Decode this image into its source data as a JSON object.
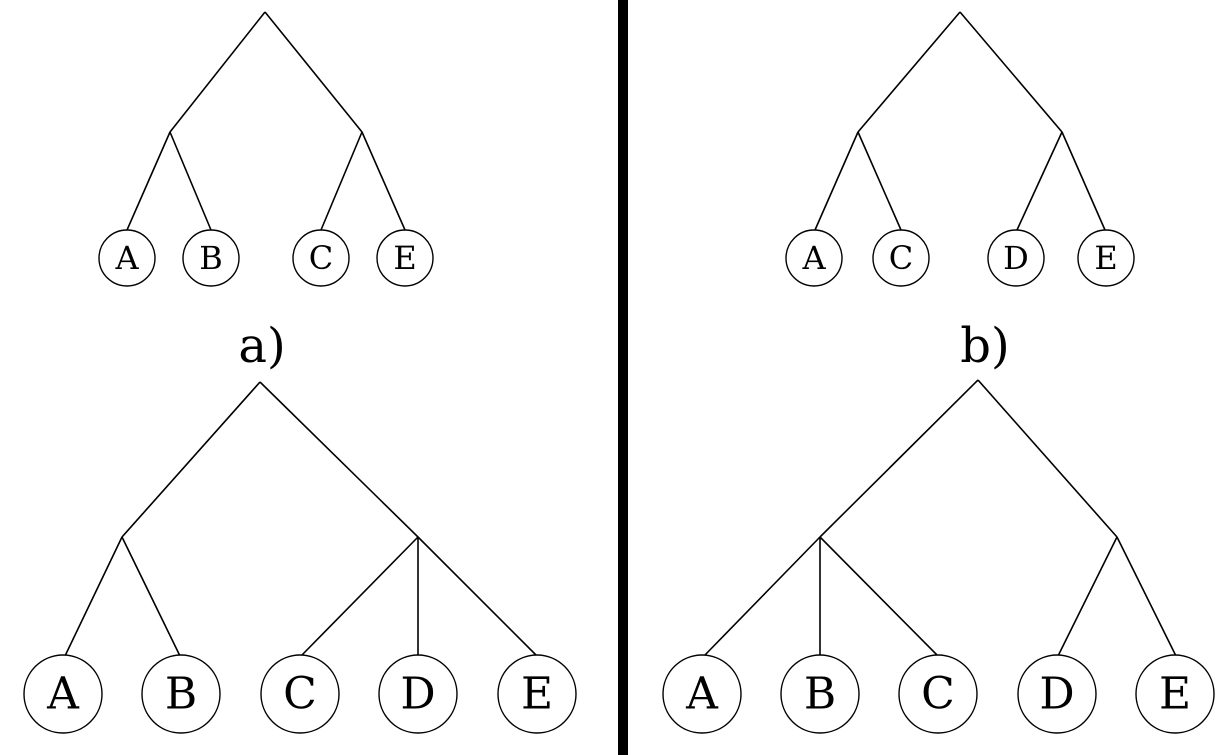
{
  "panels": [
    {
      "label": "a)",
      "top_tree": {
        "leaves": [
          "A",
          "B",
          "C",
          "E"
        ]
      },
      "bottom_tree": {
        "leaves": [
          "A",
          "B",
          "C",
          "D",
          "E"
        ]
      }
    },
    {
      "label": "b)",
      "top_tree": {
        "leaves": [
          "A",
          "C",
          "D",
          "E"
        ]
      },
      "bottom_tree": {
        "leaves": [
          "A",
          "B",
          "C",
          "D",
          "E"
        ]
      }
    }
  ]
}
